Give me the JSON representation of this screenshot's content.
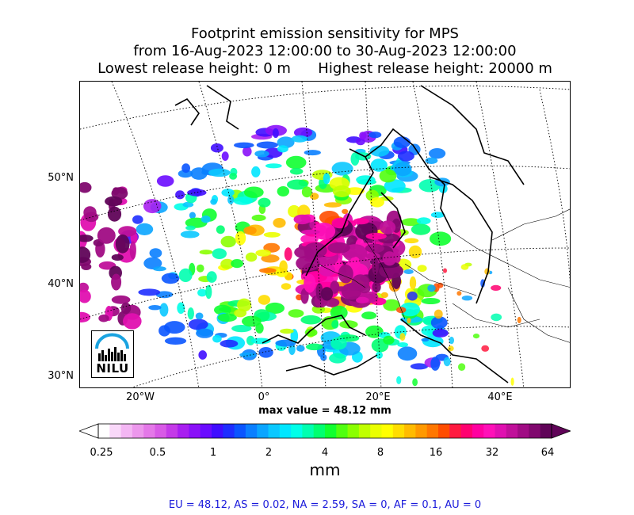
{
  "title": {
    "line1": "Footprint emission sensitivity for MPS",
    "line2": "from 16-Aug-2023 12:00:00 to 30-Aug-2023 12:00:00",
    "line3": "Lowest release height: 0 m      Highest release height: 20000 m"
  },
  "map": {
    "lat_labels": [
      "50°N",
      "40°N",
      "30°N"
    ],
    "lon_labels": [
      "20°W",
      "0°",
      "20°E",
      "40°E"
    ],
    "max_value_label": "max value = 48.12 mm"
  },
  "logo": {
    "text": "NILU",
    "color": "#1aa3e0"
  },
  "colorbar": {
    "tick_labels": [
      "0.25",
      "0.5",
      "1",
      "2",
      "4",
      "8",
      "16",
      "32",
      "64"
    ],
    "units": "mm",
    "colors": [
      "#ffffff",
      "#f9d8f9",
      "#f3b6f3",
      "#ec97ec",
      "#e478e8",
      "#d85ae6",
      "#c43ae8",
      "#a81ff0",
      "#8a11f8",
      "#6a0bff",
      "#3f0dff",
      "#1e2dff",
      "#0a55ff",
      "#0a7fff",
      "#0aa5ff",
      "#0ac8ff",
      "#00e6ff",
      "#00ffe8",
      "#00ffb0",
      "#00ff70",
      "#10ff30",
      "#50ff10",
      "#8aff00",
      "#c0ff00",
      "#eaff00",
      "#ffff00",
      "#ffdd00",
      "#ffbb00",
      "#ff9900",
      "#ff7700",
      "#ff4d00",
      "#ff1a40",
      "#ff0070",
      "#ff00a0",
      "#ff10b8",
      "#e010b0",
      "#c0109a",
      "#a00c84",
      "#80086e",
      "#600458"
    ]
  },
  "stats": "EU = 48.12,  AS = 0.02,  NA = 2.59,  SA = 0,  AF = 0.1,  AU = 0"
}
